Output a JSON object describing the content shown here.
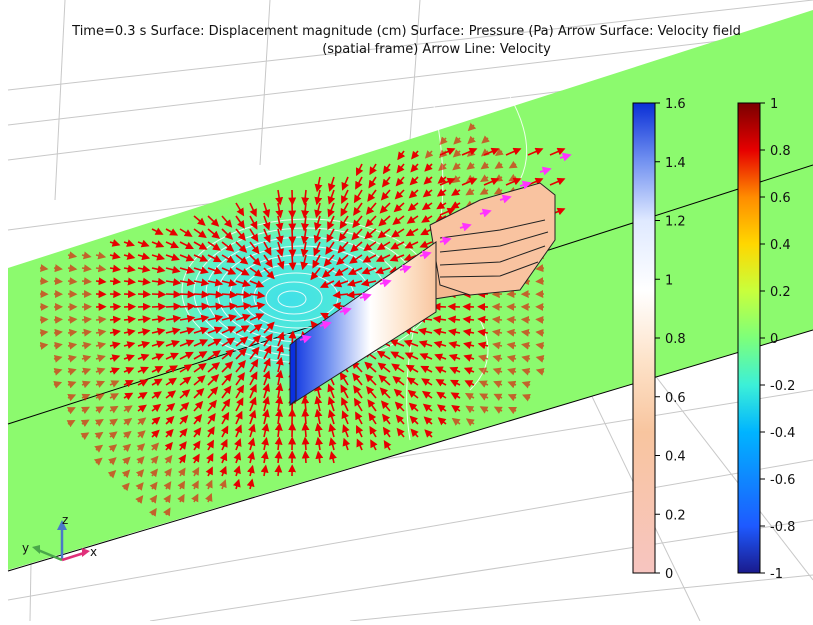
{
  "plot": {
    "title_line1": "Time=0.3 s Surface: Displacement magnitude (cm)  Surface: Pressure (Pa)  Arrow Surface: Velocity field",
    "title_line2": "(spatial frame)  Arrow Line: Velocity"
  },
  "colorbar_displacement": {
    "ticks": [
      "1.6",
      "1.4",
      "1.2",
      "1",
      "0.8",
      "0.6",
      "0.4",
      "0.2",
      "0"
    ],
    "colors": [
      "#0a2fd6",
      "#6f8ff0",
      "#dfe9ff",
      "#ffffff",
      "#fde2c8",
      "#f8c59f",
      "#f7c5c0"
    ]
  },
  "colorbar_pressure": {
    "ticks": [
      "1",
      "0.8",
      "0.6",
      "0.4",
      "0.2",
      "0",
      "-0.2",
      "-0.4",
      "-0.6",
      "-0.8",
      "-1"
    ],
    "colors": [
      "#7a0000",
      "#e60000",
      "#ff8c00",
      "#ffd700",
      "#c8ff3c",
      "#7dff7a",
      "#3cf0d8",
      "#00b4ff",
      "#1e5aff",
      "#1a1a8c"
    ]
  },
  "axes_triad": {
    "z": "z",
    "y": "y",
    "x": "x"
  },
  "colors": {
    "channel": "#8cfa6e",
    "low_pressure": "#58f0d2",
    "arrow": "#e60000",
    "arrow_line": "#ff33ff",
    "wall": "#f9c3a0"
  },
  "icons": [
    "axis-triad-icon"
  ]
}
